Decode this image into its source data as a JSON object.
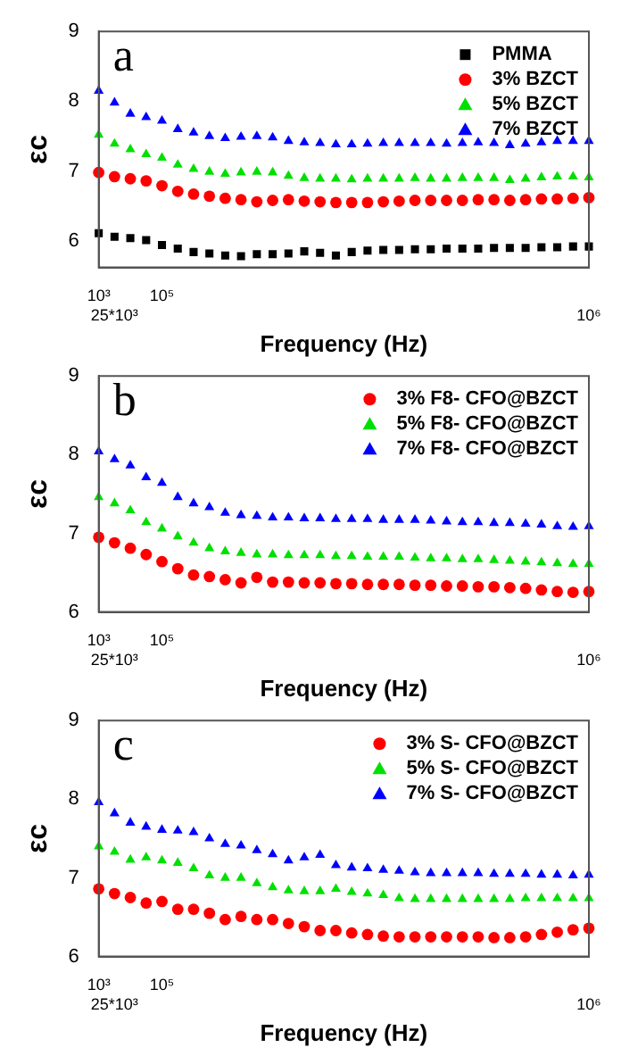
{
  "chart_data": [
    {
      "type": "scatter",
      "xlabel": "Frequency (Hz)",
      "ylabel": "εc",
      "annotations": [
        "a"
      ],
      "legend": "top right",
      "ylim": [
        5.62,
        9
      ],
      "yticks": [
        6,
        7,
        8,
        9
      ],
      "grid": false,
      "categories": [
        "10³",
        "25*10³",
        null,
        null,
        "10⁵",
        null,
        null,
        null,
        null,
        null,
        null,
        null,
        null,
        null,
        null,
        null,
        null,
        null,
        null,
        null,
        null,
        null,
        null,
        null,
        null,
        null,
        null,
        null,
        null,
        null,
        null,
        "10⁶"
      ],
      "series": [
        {
          "name": "PMMA",
          "color": "#000000",
          "marker": "square",
          "values": [
            6.11,
            6.06,
            6.04,
            6.01,
            5.94,
            5.89,
            5.84,
            5.82,
            5.79,
            5.78,
            5.81,
            5.81,
            5.82,
            5.85,
            5.83,
            5.79,
            5.84,
            5.86,
            5.87,
            5.87,
            5.88,
            5.88,
            5.89,
            5.89,
            5.89,
            5.9,
            5.9,
            5.9,
            5.91,
            5.91,
            5.92,
            5.92
          ]
        },
        {
          "name": "3% BZCT",
          "color": "#ff0000",
          "marker": "circle",
          "values": [
            6.98,
            6.92,
            6.89,
            6.86,
            6.79,
            6.71,
            6.67,
            6.64,
            6.61,
            6.59,
            6.56,
            6.58,
            6.59,
            6.57,
            6.56,
            6.55,
            6.55,
            6.55,
            6.56,
            6.57,
            6.58,
            6.58,
            6.58,
            6.58,
            6.59,
            6.59,
            6.58,
            6.59,
            6.6,
            6.6,
            6.61,
            6.62
          ]
        },
        {
          "name": "5% BZCT",
          "color": "#00e000",
          "marker": "triangle",
          "values": [
            7.52,
            7.39,
            7.31,
            7.24,
            7.19,
            7.09,
            7.03,
            6.99,
            6.96,
            6.98,
            6.99,
            6.98,
            6.93,
            6.9,
            6.89,
            6.89,
            6.88,
            6.89,
            6.89,
            6.89,
            6.9,
            6.89,
            6.89,
            6.9,
            6.9,
            6.9,
            6.87,
            6.89,
            6.91,
            6.92,
            6.92,
            6.91
          ]
        },
        {
          "name": "7% BZCT",
          "color": "#0000ff",
          "marker": "triangle",
          "values": [
            8.15,
            7.98,
            7.82,
            7.77,
            7.72,
            7.6,
            7.55,
            7.5,
            7.47,
            7.49,
            7.5,
            7.48,
            7.43,
            7.41,
            7.4,
            7.38,
            7.38,
            7.39,
            7.4,
            7.4,
            7.4,
            7.4,
            7.39,
            7.4,
            7.41,
            7.4,
            7.37,
            7.39,
            7.41,
            7.43,
            7.43,
            7.43
          ]
        }
      ]
    },
    {
      "type": "scatter",
      "xlabel": "Frequency (Hz)",
      "ylabel": "εc",
      "annotations": [
        "b"
      ],
      "legend": "top right",
      "ylim": [
        6,
        9
      ],
      "yticks": [
        6,
        7,
        8,
        9
      ],
      "grid": false,
      "categories": [
        "10³",
        "25*10³",
        null,
        null,
        "10⁵",
        null,
        null,
        null,
        null,
        null,
        null,
        null,
        null,
        null,
        null,
        null,
        null,
        null,
        null,
        null,
        null,
        null,
        null,
        null,
        null,
        null,
        null,
        null,
        null,
        null,
        null,
        "10⁶"
      ],
      "series": [
        {
          "name": "3% F8- CFO@BZCT",
          "color": "#ff0000",
          "marker": "circle",
          "values": [
            6.95,
            6.88,
            6.81,
            6.73,
            6.64,
            6.55,
            6.47,
            6.45,
            6.41,
            6.37,
            6.44,
            6.38,
            6.38,
            6.37,
            6.37,
            6.36,
            6.36,
            6.35,
            6.35,
            6.35,
            6.34,
            6.34,
            6.33,
            6.33,
            6.32,
            6.32,
            6.31,
            6.3,
            6.28,
            6.26,
            6.25,
            6.26
          ]
        },
        {
          "name": "5% F8- CFO@BZCT",
          "color": "#00e000",
          "marker": "triangle",
          "values": [
            7.46,
            7.38,
            7.29,
            7.14,
            7.06,
            6.96,
            6.88,
            6.81,
            6.77,
            6.75,
            6.73,
            6.73,
            6.72,
            6.72,
            6.72,
            6.71,
            6.71,
            6.7,
            6.7,
            6.7,
            6.69,
            6.68,
            6.68,
            6.67,
            6.67,
            6.66,
            6.65,
            6.64,
            6.63,
            6.62,
            6.61,
            6.61
          ]
        },
        {
          "name": "7% F8- CFO@BZCT",
          "color": "#0000ff",
          "marker": "triangle",
          "values": [
            8.04,
            7.94,
            7.86,
            7.71,
            7.64,
            7.46,
            7.38,
            7.33,
            7.26,
            7.23,
            7.22,
            7.2,
            7.2,
            7.19,
            7.19,
            7.18,
            7.18,
            7.18,
            7.17,
            7.17,
            7.17,
            7.16,
            7.15,
            7.14,
            7.14,
            7.13,
            7.13,
            7.12,
            7.11,
            7.09,
            7.08,
            7.09
          ]
        }
      ]
    },
    {
      "type": "scatter",
      "xlabel": "Frequency (Hz)",
      "ylabel": "εc",
      "annotations": [
        "c"
      ],
      "legend": "top right",
      "ylim": [
        6,
        9
      ],
      "yticks": [
        6,
        7,
        8,
        9
      ],
      "grid": false,
      "categories": [
        "10³",
        "25*10³",
        null,
        null,
        "10⁵",
        null,
        null,
        null,
        null,
        null,
        null,
        null,
        null,
        null,
        null,
        null,
        null,
        null,
        null,
        null,
        null,
        null,
        null,
        null,
        null,
        null,
        null,
        null,
        null,
        null,
        null,
        "10⁶"
      ],
      "series": [
        {
          "name": "3% S- CFO@BZCT",
          "color": "#ff0000",
          "marker": "circle",
          "values": [
            6.86,
            6.8,
            6.75,
            6.68,
            6.7,
            6.6,
            6.6,
            6.55,
            6.47,
            6.51,
            6.47,
            6.47,
            6.42,
            6.38,
            6.33,
            6.33,
            6.3,
            6.28,
            6.26,
            6.25,
            6.25,
            6.25,
            6.25,
            6.25,
            6.25,
            6.24,
            6.24,
            6.25,
            6.28,
            6.31,
            6.34,
            6.36
          ]
        },
        {
          "name": "5% S- CFO@BZCT",
          "color": "#00e000",
          "marker": "triangle",
          "values": [
            7.4,
            7.33,
            7.23,
            7.26,
            7.22,
            7.19,
            7.12,
            7.03,
            7.0,
            7.0,
            6.93,
            6.88,
            6.84,
            6.83,
            6.83,
            6.86,
            6.82,
            6.8,
            6.78,
            6.74,
            6.73,
            6.73,
            6.73,
            6.73,
            6.73,
            6.73,
            6.73,
            6.74,
            6.74,
            6.74,
            6.74,
            6.74
          ]
        },
        {
          "name": "7% S- CFO@BZCT",
          "color": "#0000ff",
          "marker": "triangle",
          "values": [
            7.96,
            7.82,
            7.7,
            7.65,
            7.61,
            7.6,
            7.58,
            7.5,
            7.43,
            7.41,
            7.35,
            7.3,
            7.22,
            7.26,
            7.29,
            7.16,
            7.13,
            7.12,
            7.1,
            7.09,
            7.07,
            7.06,
            7.06,
            7.06,
            7.06,
            7.05,
            7.05,
            7.05,
            7.04,
            7.04,
            7.03,
            7.04
          ]
        }
      ]
    }
  ]
}
